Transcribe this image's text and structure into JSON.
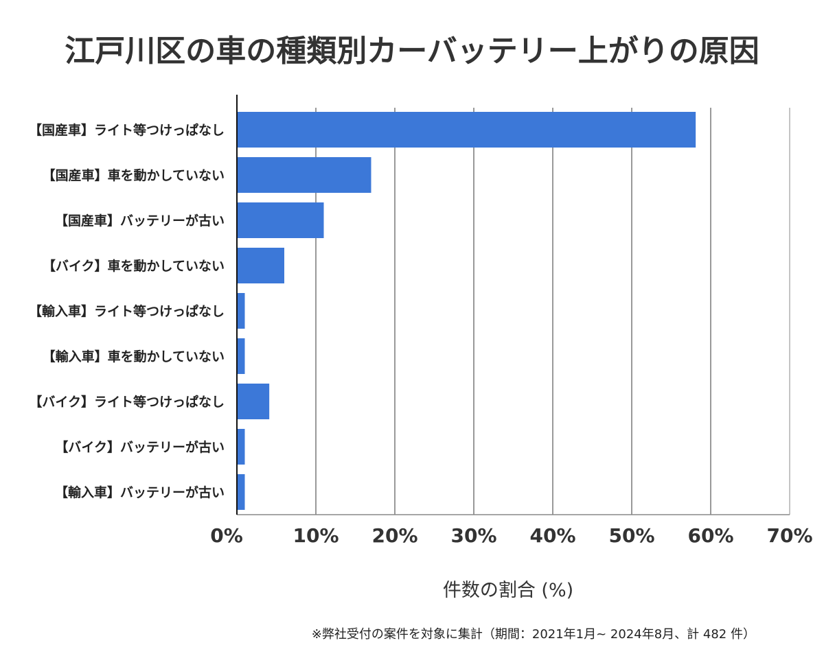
{
  "chart_data": {
    "type": "bar",
    "orientation": "horizontal",
    "title": "江戸川区の車の種類別カーバッテリー上がりの原因",
    "xlabel": "件数の割合 (%)",
    "ylabel": "",
    "categories": [
      "【国産車】ライト等つけっぱなし",
      "【国産車】車を動かしていない",
      "【国産車】バッテリーが古い",
      "【バイク】車を動かしていない",
      "【輸入車】ライト等つけっぱなし",
      "【輸入車】車を動かしていない",
      "【バイク】ライト等つけっぱなし",
      "【バイク】バッテリーが古い",
      "【輸入車】バッテリーが古い"
    ],
    "values": [
      58.1,
      17.0,
      11.0,
      6.0,
      1.0,
      1.0,
      4.1,
      1.0,
      1.0
    ],
    "xlim": [
      0,
      70
    ],
    "xticks": [
      "0%",
      "10%",
      "20%",
      "30%",
      "40%",
      "50%",
      "60%",
      "70%"
    ],
    "grid": true,
    "bar_color": "#3c78d8",
    "note": "※弊社受付の案件を対象に集計（期間：2021年1月~ 2024年8月、計 482 件）"
  }
}
